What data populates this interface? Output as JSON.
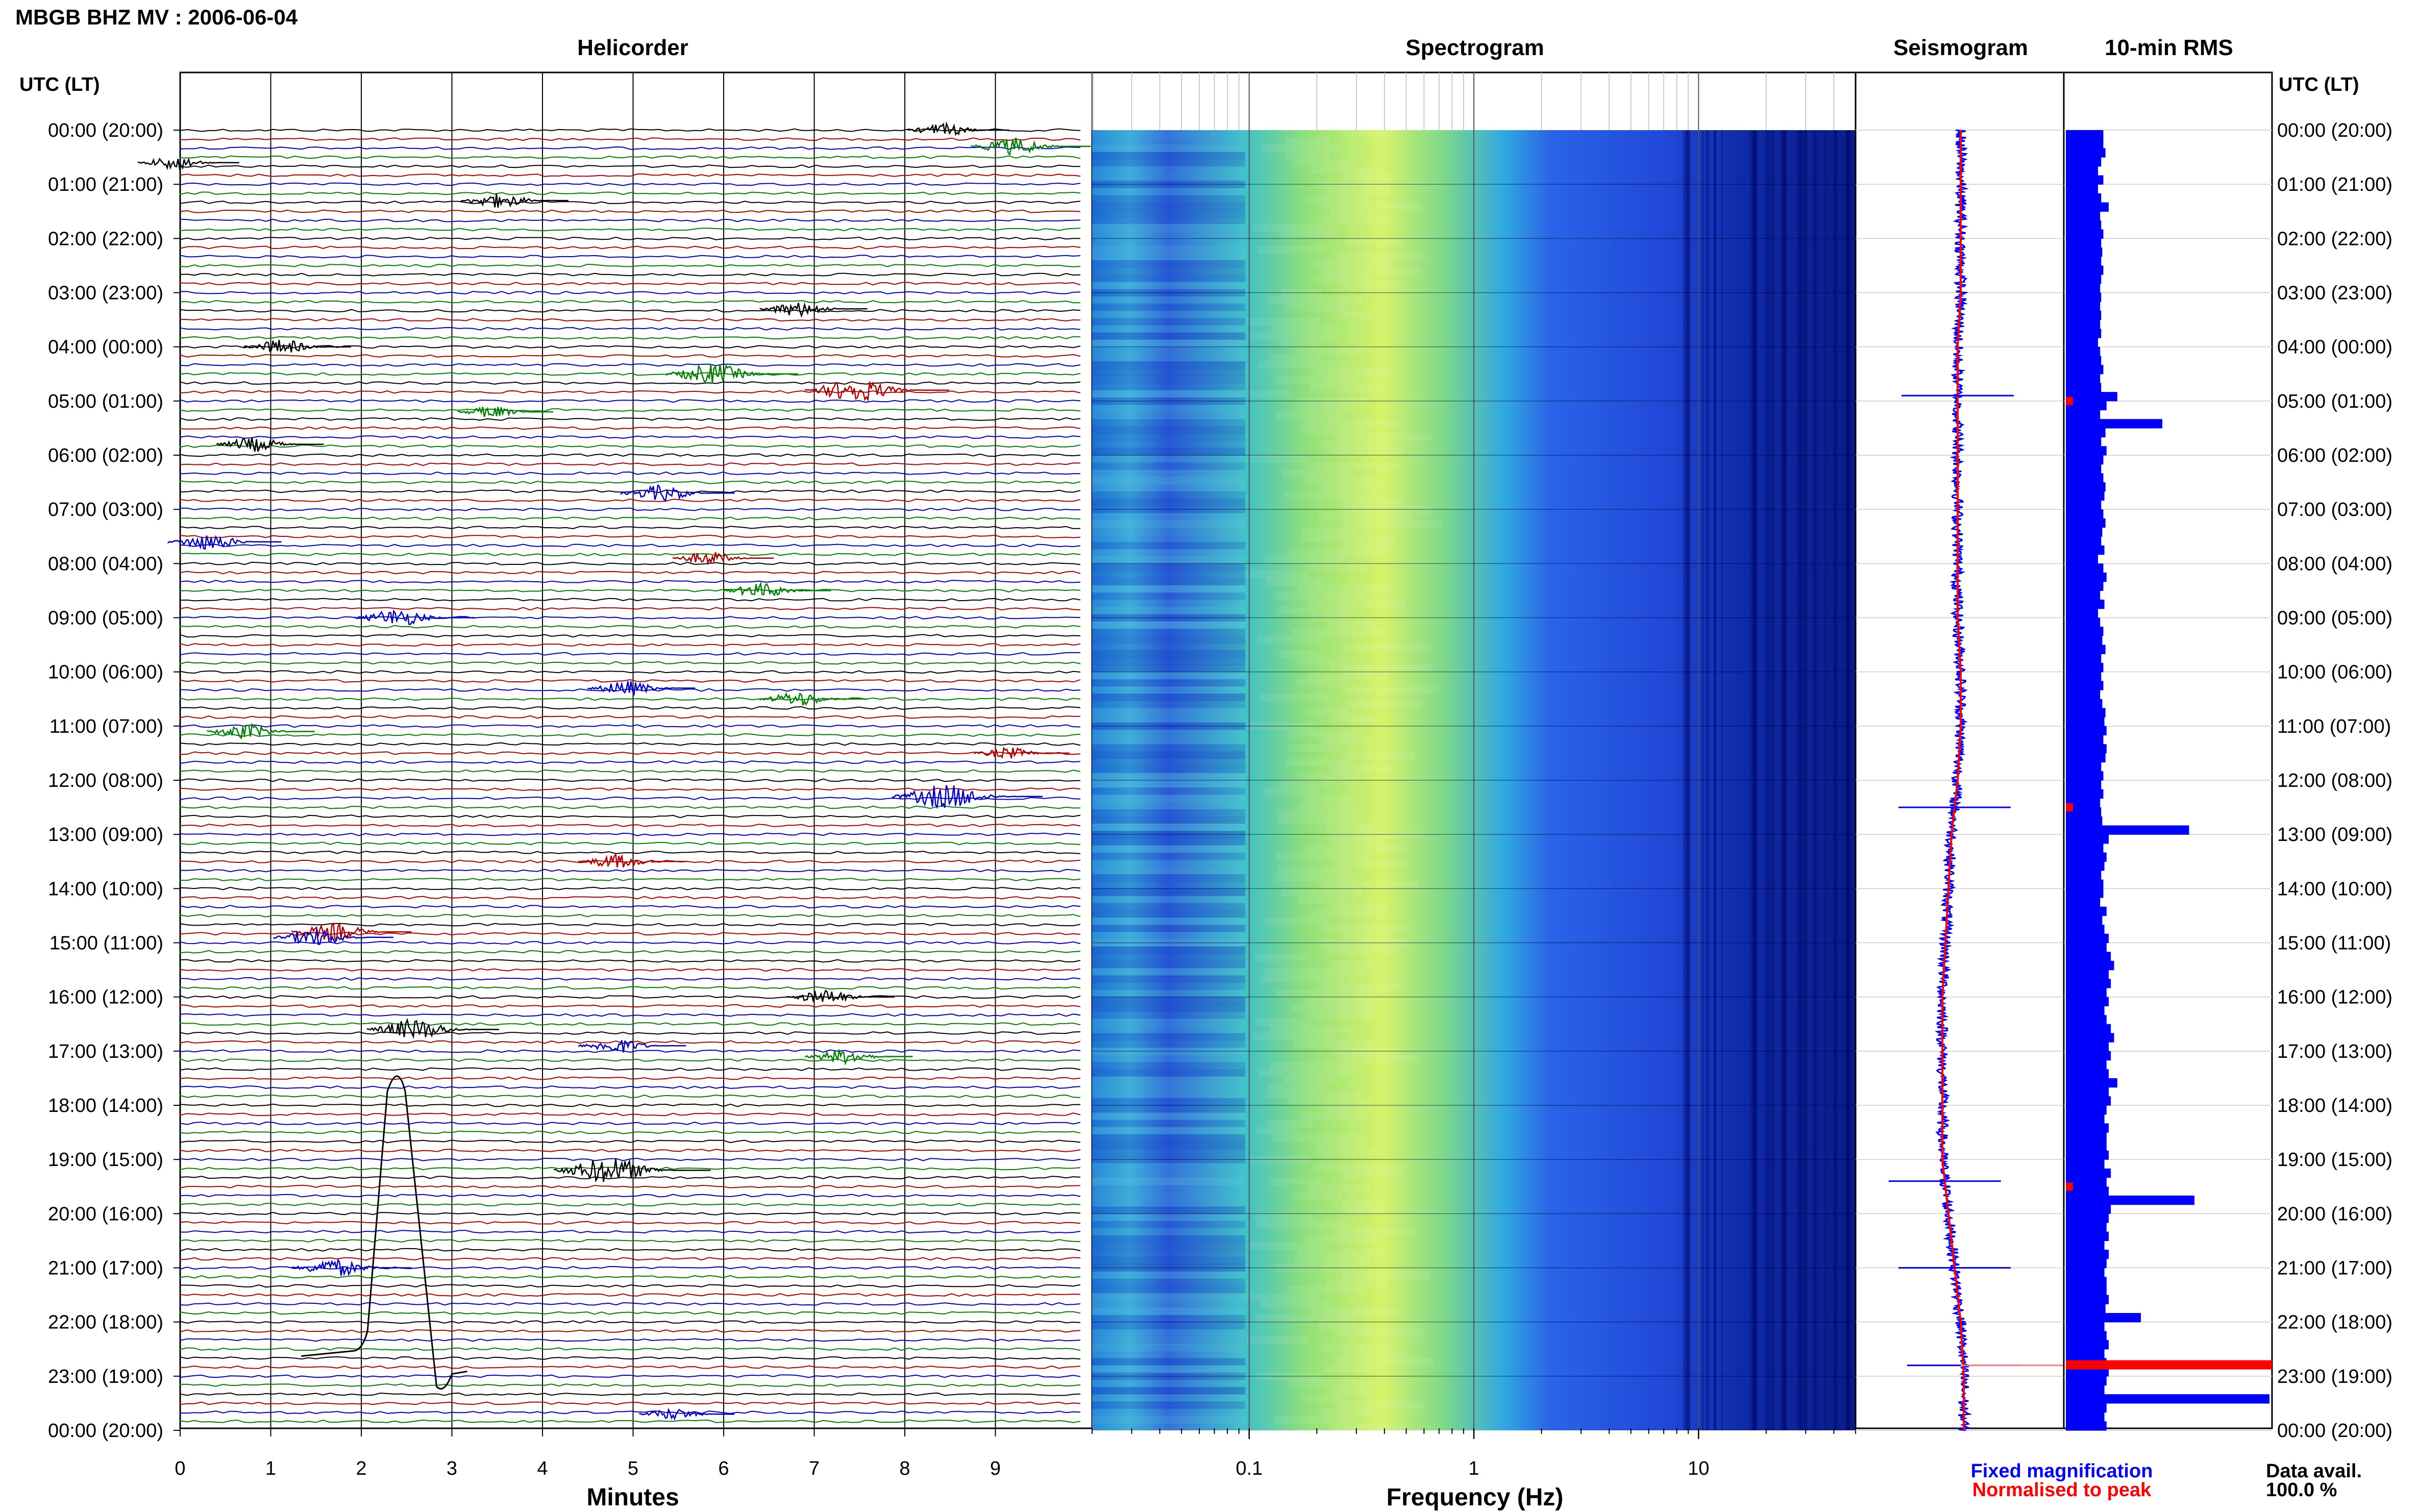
{
  "header": {
    "title": "MBGB BHZ MV : 2006-06-04"
  },
  "panels": {
    "helicorder": "Helicorder",
    "spectrogram": "Spectrogram",
    "seismogram": "Seismogram",
    "rms": "10-min RMS"
  },
  "axes": {
    "utc_label_left": "UTC (LT)",
    "utc_label_right": "UTC (LT)",
    "minutes_label": "Minutes",
    "frequency_label": "Frequency (Hz)"
  },
  "legend": {
    "fixed": "Fixed magnification",
    "normalised": "Normalised to peak",
    "data_avail_label": "Data avail.",
    "data_avail_value": "100.0 %"
  },
  "colors": {
    "trace_black": "#000000",
    "trace_red": "#b00000",
    "trace_blue": "#0000c8",
    "trace_green": "#008000",
    "fixed": "#0000ff",
    "normalised": "#ff0000",
    "spectrogram_low": "#00008b",
    "spectrogram_high": "#ffff66"
  },
  "chart_data": [
    {
      "type": "helicorder",
      "title": "Helicorder",
      "xlabel": "Minutes",
      "x_ticks": [
        0,
        1,
        2,
        3,
        4,
        5,
        6,
        7,
        8,
        9
      ],
      "xlim": [
        0,
        10
      ],
      "time_labels": [
        "00:00 (20:00)",
        "01:00 (21:00)",
        "02:00 (22:00)",
        "03:00 (23:00)",
        "04:00 (00:00)",
        "05:00 (01:00)",
        "06:00 (02:00)",
        "07:00 (03:00)",
        "08:00 (04:00)",
        "09:00 (05:00)",
        "10:00 (06:00)",
        "11:00 (07:00)",
        "12:00 (08:00)",
        "13:00 (09:00)",
        "14:00 (10:00)",
        "15:00 (11:00)",
        "16:00 (12:00)",
        "17:00 (13:00)",
        "18:00 (14:00)",
        "19:00 (15:00)",
        "20:00 (16:00)",
        "21:00 (17:00)",
        "22:00 (18:00)",
        "23:00 (19:00)",
        "00:00 (20:00)"
      ],
      "trace_colors_cycle": [
        "black",
        "red",
        "blue",
        "green"
      ],
      "rows": 144,
      "row_minutes": 10,
      "events": [
        {
          "hour": 0.0,
          "minute": 8.6,
          "color": "black",
          "amp": 0.5
        },
        {
          "hour": 0.3,
          "minute": 9.4,
          "color": "green",
          "amp": 0.8
        },
        {
          "hour": 0.6,
          "minute": 0.1,
          "color": "black",
          "amp": 0.5
        },
        {
          "hour": 1.3,
          "minute": 3.7,
          "color": "black",
          "amp": 0.6
        },
        {
          "hour": 3.3,
          "minute": 7.0,
          "color": "black",
          "amp": 0.6
        },
        {
          "hour": 4.0,
          "minute": 1.3,
          "color": "black",
          "amp": 0.6
        },
        {
          "hour": 4.5,
          "minute": 6.1,
          "color": "green",
          "amp": 1.0
        },
        {
          "hour": 4.8,
          "minute": 7.7,
          "color": "red",
          "amp": 1.2
        },
        {
          "hour": 5.2,
          "minute": 3.6,
          "color": "green",
          "amp": 0.4
        },
        {
          "hour": 5.8,
          "minute": 1.0,
          "color": "black",
          "amp": 0.6
        },
        {
          "hour": 6.7,
          "minute": 5.5,
          "color": "blue",
          "amp": 0.7
        },
        {
          "hour": 7.6,
          "minute": 0.5,
          "color": "blue",
          "amp": 0.7
        },
        {
          "hour": 7.9,
          "minute": 6.0,
          "color": "red",
          "amp": 0.5
        },
        {
          "hour": 8.5,
          "minute": 6.6,
          "color": "green",
          "amp": 0.6
        },
        {
          "hour": 9.0,
          "minute": 2.6,
          "color": "blue",
          "amp": 0.8
        },
        {
          "hour": 10.3,
          "minute": 5.1,
          "color": "blue",
          "amp": 0.6
        },
        {
          "hour": 10.5,
          "minute": 7.0,
          "color": "green",
          "amp": 0.6
        },
        {
          "hour": 11.1,
          "minute": 0.9,
          "color": "green",
          "amp": 0.6
        },
        {
          "hour": 11.5,
          "minute": 9.3,
          "color": "red",
          "amp": 0.4
        },
        {
          "hour": 12.3,
          "minute": 8.7,
          "color": "blue",
          "amp": 1.3
        },
        {
          "hour": 13.5,
          "minute": 5.0,
          "color": "red",
          "amp": 0.6
        },
        {
          "hour": 14.8,
          "minute": 1.9,
          "color": "red",
          "amp": 0.8
        },
        {
          "hour": 14.9,
          "minute": 1.7,
          "color": "blue",
          "amp": 0.8
        },
        {
          "hour": 16.0,
          "minute": 7.3,
          "color": "black",
          "amp": 0.6
        },
        {
          "hour": 16.6,
          "minute": 2.8,
          "color": "black",
          "amp": 1.0
        },
        {
          "hour": 16.9,
          "minute": 5.0,
          "color": "blue",
          "amp": 0.6
        },
        {
          "hour": 17.1,
          "minute": 7.5,
          "color": "green",
          "amp": 0.6
        },
        {
          "hour": 19.2,
          "minute": 5.0,
          "color": "black",
          "amp": 1.4
        },
        {
          "hour": 21.0,
          "minute": 1.9,
          "color": "blue",
          "amp": 0.8
        },
        {
          "hour": 23.7,
          "minute": 5.6,
          "color": "blue",
          "amp": 0.4
        }
      ],
      "long_period_transient": {
        "hour_start": 21.7,
        "hour_end": 23.1,
        "minute_start": 1.9,
        "minute_peak": 2.4,
        "minute_end": 3.0
      }
    },
    {
      "type": "heatmap",
      "title": "Spectrogram",
      "xlabel": "Frequency (Hz)",
      "x_scale": "log",
      "xlim": [
        0.02,
        50
      ],
      "x_ticks": [
        0.1,
        1,
        10
      ],
      "x_tick_labels": [
        "0.1",
        "1",
        "10"
      ],
      "peak_frequency_hz": 0.35,
      "z_range": [
        "low",
        "high"
      ]
    },
    {
      "type": "seismogram",
      "title": "Seismogram",
      "series": [
        {
          "name": "Fixed magnification",
          "color": "blue"
        },
        {
          "name": "Normalised to peak",
          "color": "red"
        }
      ],
      "spikes_hour": [
        4.9,
        12.5,
        19.4,
        21.0,
        22.8
      ],
      "drift": [
        0,
        0,
        0,
        0,
        -0.05,
        -0.05,
        -0.05,
        -0.05,
        -0.05,
        -0.05,
        0,
        0,
        -0.05,
        -0.15,
        -0.2,
        -0.25,
        -0.3,
        -0.3,
        -0.3,
        -0.3,
        -0.2,
        -0.1,
        0,
        0.05,
        0.05
      ]
    },
    {
      "type": "bar",
      "orientation": "horizontal",
      "title": "10-min RMS",
      "bins_per_hour": 6,
      "values": [
        0.35,
        0.35,
        0.37,
        0.33,
        0.3,
        0.35,
        0.3,
        0.33,
        0.4,
        0.32,
        0.33,
        0.35,
        0.33,
        0.34,
        0.33,
        0.35,
        0.33,
        0.32,
        0.33,
        0.32,
        0.33,
        0.32,
        0.33,
        0.3,
        0.32,
        0.33,
        0.35,
        0.32,
        0.33,
        0.48,
        0.38,
        0.32,
        0.9,
        0.37,
        0.33,
        0.38,
        0.35,
        0.33,
        0.35,
        0.37,
        0.36,
        0.33,
        0.35,
        0.37,
        0.34,
        0.33,
        0.36,
        0.3,
        0.35,
        0.38,
        0.35,
        0.32,
        0.36,
        0.3,
        0.32,
        0.35,
        0.34,
        0.37,
        0.33,
        0.35,
        0.33,
        0.35,
        0.32,
        0.34,
        0.37,
        0.36,
        0.38,
        0.35,
        0.38,
        0.37,
        0.33,
        0.35,
        0.33,
        0.35,
        0.32,
        0.33,
        0.34,
        1.15,
        0.4,
        0.35,
        0.38,
        0.36,
        0.33,
        0.35,
        0.35,
        0.32,
        0.38,
        0.34,
        0.36,
        0.4,
        0.38,
        0.42,
        0.45,
        0.4,
        0.42,
        0.38,
        0.4,
        0.36,
        0.38,
        0.42,
        0.45,
        0.4,
        0.42,
        0.38,
        0.4,
        0.48,
        0.4,
        0.42,
        0.38,
        0.36,
        0.4,
        0.38,
        0.38,
        0.4,
        0.36,
        0.42,
        0.38,
        0.4,
        1.2,
        0.42,
        0.4,
        0.38,
        0.4,
        0.36,
        0.4,
        0.38,
        0.36,
        0.38,
        0.38,
        0.4,
        0.37,
        0.7,
        0.36,
        0.38,
        0.4,
        0.36,
        0.38,
        0.4,
        0.38,
        0.36,
        1.9,
        0.38,
        0.36,
        0.38
      ],
      "normalised_marks_hour": [
        5.0,
        12.5,
        19.5,
        22.8
      ]
    }
  ]
}
